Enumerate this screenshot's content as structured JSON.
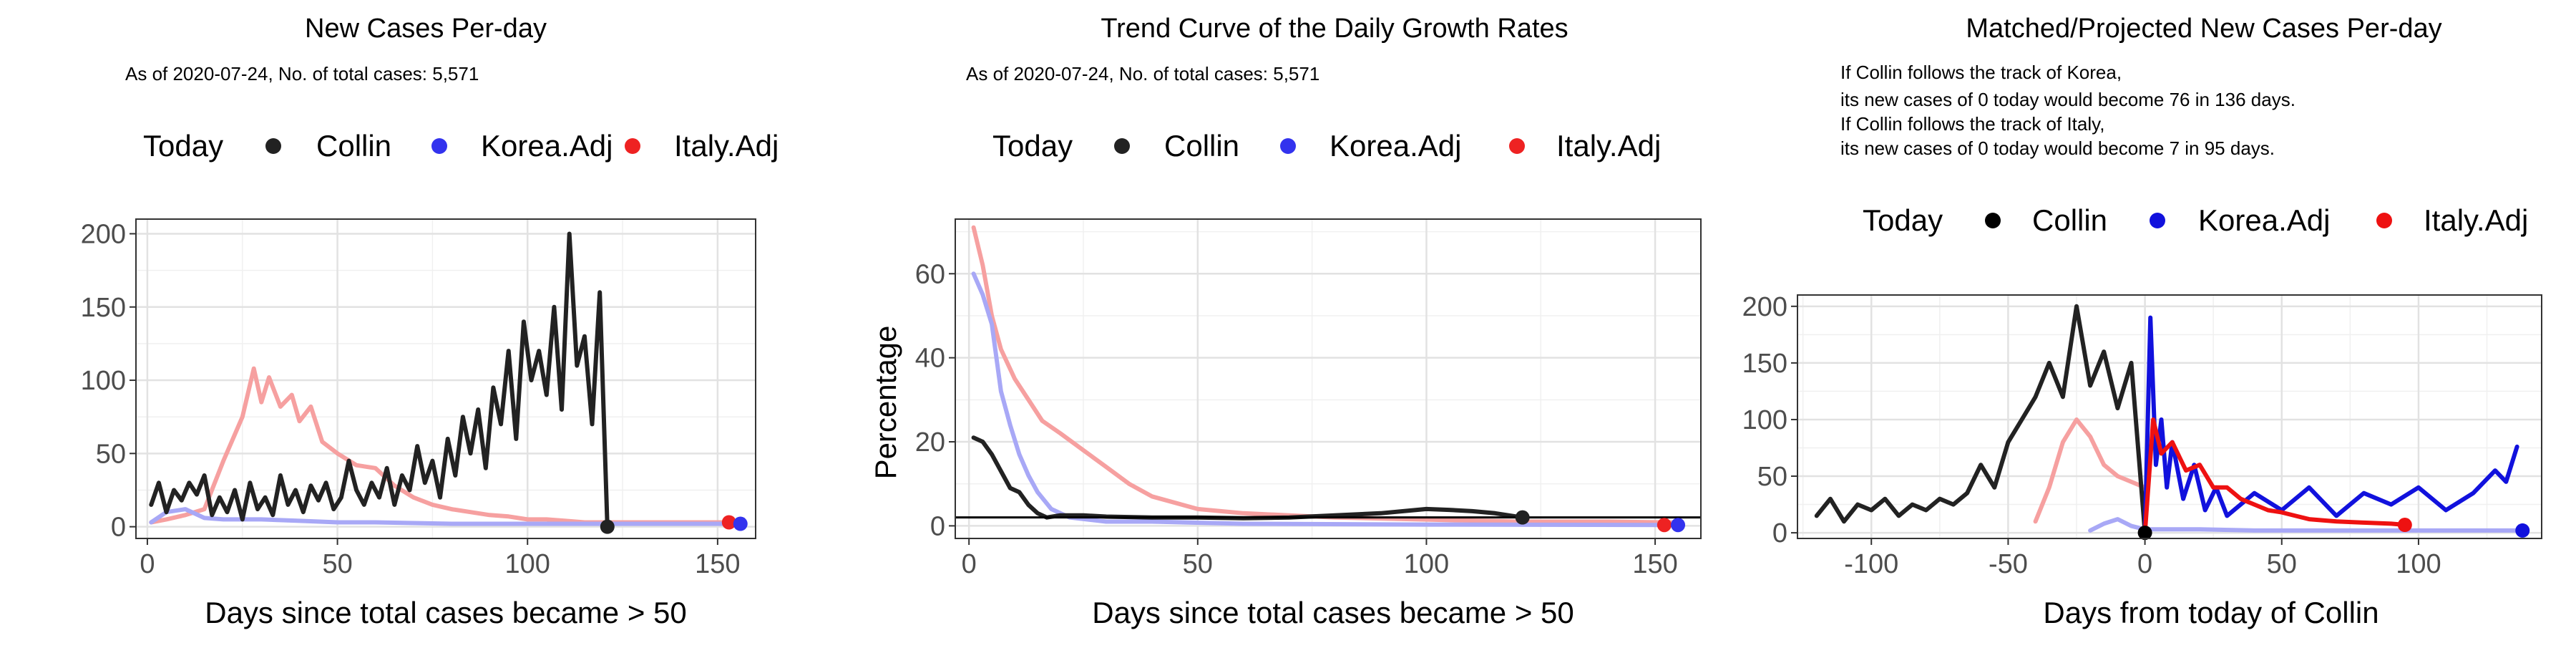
{
  "chart_data": [
    {
      "type": "line",
      "title": "New Cases Per-day",
      "subtitle": "As of 2020-07-24, No. of total cases: 5,571",
      "xlabel": "Days since total cases became > 50",
      "ylabel": "",
      "xlim": [
        -3,
        160
      ],
      "ylim": [
        -8,
        210
      ],
      "xticks": [
        0,
        50,
        100,
        150
      ],
      "yticks": [
        0,
        50,
        100,
        150,
        200
      ],
      "legend": {
        "title": "Today",
        "position": "top",
        "entries": [
          {
            "name": "Collin",
            "color": "#222222"
          },
          {
            "name": "Korea.Adj",
            "color": "#3333ee"
          },
          {
            "name": "Italy.Adj",
            "color": "#ee2222"
          }
        ]
      },
      "series": [
        {
          "name": "Italy.Adj",
          "color": "#f6a0a0",
          "x": [
            1,
            5,
            10,
            15,
            20,
            25,
            28,
            30,
            32,
            35,
            38,
            40,
            43,
            46,
            50,
            55,
            60,
            65,
            70,
            75,
            80,
            85,
            90,
            95,
            100,
            105,
            110,
            115,
            120,
            130,
            140,
            150,
            155
          ],
          "y": [
            3,
            5,
            8,
            12,
            45,
            75,
            108,
            85,
            102,
            82,
            90,
            72,
            82,
            58,
            50,
            42,
            40,
            28,
            20,
            15,
            12,
            10,
            8,
            7,
            5,
            5,
            4,
            3,
            3,
            3,
            3,
            3,
            3
          ]
        },
        {
          "name": "Korea.Adj",
          "color": "#a8a8f6",
          "x": [
            1,
            5,
            10,
            15,
            20,
            30,
            40,
            50,
            60,
            80,
            100,
            120,
            140,
            155
          ],
          "y": [
            3,
            10,
            12,
            6,
            5,
            5,
            4,
            3,
            3,
            2,
            2,
            2,
            2,
            2
          ]
        },
        {
          "name": "Collin",
          "color": "#222222",
          "x": [
            1,
            3,
            5,
            7,
            9,
            11,
            13,
            15,
            17,
            19,
            21,
            23,
            25,
            27,
            29,
            31,
            33,
            35,
            37,
            39,
            41,
            43,
            45,
            47,
            49,
            51,
            53,
            55,
            57,
            59,
            61,
            63,
            65,
            67,
            69,
            71,
            73,
            75,
            77,
            79,
            81,
            83,
            85,
            87,
            89,
            91,
            93,
            95,
            97,
            99,
            101,
            103,
            105,
            107,
            109,
            111,
            113,
            115,
            117,
            119,
            121
          ],
          "y": [
            15,
            30,
            10,
            25,
            18,
            30,
            22,
            35,
            8,
            20,
            10,
            25,
            5,
            30,
            12,
            20,
            8,
            35,
            15,
            25,
            10,
            28,
            18,
            30,
            12,
            20,
            45,
            25,
            15,
            30,
            20,
            40,
            15,
            35,
            25,
            55,
            30,
            45,
            20,
            60,
            35,
            75,
            50,
            80,
            40,
            95,
            70,
            120,
            60,
            140,
            100,
            120,
            90,
            150,
            80,
            200,
            110,
            130,
            70,
            160,
            0
          ]
        }
      ],
      "today_markers": [
        {
          "name": "Collin",
          "x": 121,
          "y": 0,
          "color": "#222222"
        },
        {
          "name": "Italy.Adj",
          "x": 153,
          "y": 3,
          "color": "#ee2222"
        },
        {
          "name": "Korea.Adj",
          "x": 156,
          "y": 2,
          "color": "#3333ee"
        }
      ]
    },
    {
      "type": "line",
      "title": "Trend Curve of the Daily Growth Rates",
      "subtitle": "As of 2020-07-24, No. of total cases: 5,571",
      "xlabel": "Days since total cases became > 50",
      "ylabel": "Percentage",
      "xlim": [
        -3,
        160
      ],
      "ylim": [
        -3,
        73
      ],
      "xticks": [
        0,
        50,
        100,
        150
      ],
      "yticks": [
        0,
        20,
        40,
        60
      ],
      "hline": 2,
      "legend": {
        "title": "Today",
        "position": "top",
        "entries": [
          {
            "name": "Collin",
            "color": "#222222"
          },
          {
            "name": "Korea.Adj",
            "color": "#3333ee"
          },
          {
            "name": "Italy.Adj",
            "color": "#ee2222"
          }
        ]
      },
      "series": [
        {
          "name": "Italy.Adj",
          "color": "#f6a0a0",
          "x": [
            1,
            3,
            5,
            7,
            10,
            13,
            16,
            20,
            25,
            30,
            35,
            40,
            50,
            60,
            80,
            100,
            120,
            140,
            155
          ],
          "y": [
            71,
            62,
            50,
            42,
            35,
            30,
            25,
            22,
            18,
            14,
            10,
            7,
            4,
            3,
            2,
            1.5,
            1,
            1,
            0.8
          ]
        },
        {
          "name": "Korea.Adj",
          "color": "#a8a8f6",
          "x": [
            1,
            3,
            5,
            7,
            9,
            11,
            13,
            15,
            18,
            22,
            30,
            40,
            60,
            100,
            155
          ],
          "y": [
            60,
            55,
            48,
            32,
            24,
            17,
            12,
            8,
            4,
            2,
            1,
            1,
            0.5,
            0.3,
            0.2
          ]
        },
        {
          "name": "Collin",
          "color": "#222222",
          "x": [
            1,
            3,
            5,
            7,
            9,
            11,
            13,
            15,
            17,
            20,
            25,
            30,
            40,
            50,
            60,
            70,
            80,
            90,
            100,
            105,
            110,
            115,
            121
          ],
          "y": [
            21,
            20,
            17,
            13,
            9,
            8,
            5,
            3,
            2,
            2.5,
            2.5,
            2.2,
            2,
            2,
            1.8,
            2,
            2.5,
            3,
            4,
            3.8,
            3.5,
            3,
            2
          ]
        }
      ],
      "today_markers": [
        {
          "name": "Collin",
          "x": 121,
          "y": 2,
          "color": "#222222"
        },
        {
          "name": "Italy.Adj",
          "x": 152,
          "y": 0.2,
          "color": "#ee2222"
        },
        {
          "name": "Korea.Adj",
          "x": 155,
          "y": 0.2,
          "color": "#3333ee"
        }
      ]
    },
    {
      "type": "line",
      "title": "Matched/Projected New Cases Per-day",
      "notes": [
        "If Collin follows the track of Korea,",
        "its new cases of 0 today would become 76 in 136 days.",
        "If Collin follows the track of Italy,",
        "its new cases of 0 today would become 7 in 95 days."
      ],
      "xlabel": "Days from today of Collin",
      "ylabel": "",
      "xlim": [
        -127,
        145
      ],
      "ylim": [
        -5,
        210
      ],
      "xticks": [
        -100,
        -50,
        0,
        50,
        100
      ],
      "yticks": [
        0,
        50,
        100,
        150,
        200
      ],
      "legend": {
        "title": "Today",
        "position": "top",
        "entries": [
          {
            "name": "Collin",
            "color": "#000000"
          },
          {
            "name": "Korea.Adj",
            "color": "#1111dd"
          },
          {
            "name": "Italy.Adj",
            "color": "#ee1111"
          }
        ]
      },
      "series": [
        {
          "name": "Italy.Adj (past)",
          "color": "#f6a0a0",
          "x": [
            -40,
            -35,
            -30,
            -25,
            -20,
            -15,
            -10,
            -5,
            0
          ],
          "y": [
            10,
            40,
            80,
            100,
            85,
            60,
            50,
            45,
            40
          ]
        },
        {
          "name": "Korea.Adj (past)",
          "color": "#a8a8f6",
          "x": [
            -20,
            -15,
            -10,
            -5,
            0,
            20,
            40,
            60,
            80,
            100,
            120,
            136
          ],
          "y": [
            2,
            8,
            12,
            6,
            3,
            3,
            2,
            2,
            2,
            2,
            2,
            2
          ]
        },
        {
          "name": "Collin",
          "color": "#222222",
          "x": [
            -120,
            -115,
            -110,
            -105,
            -100,
            -95,
            -90,
            -85,
            -80,
            -75,
            -70,
            -65,
            -60,
            -55,
            -50,
            -45,
            -40,
            -35,
            -30,
            -25,
            -20,
            -15,
            -10,
            -5,
            0
          ],
          "y": [
            15,
            30,
            10,
            25,
            20,
            30,
            15,
            25,
            20,
            30,
            25,
            35,
            60,
            40,
            80,
            100,
            120,
            150,
            120,
            200,
            130,
            160,
            110,
            150,
            0
          ]
        },
        {
          "name": "Korea.Adj",
          "color": "#1111dd",
          "x": [
            0,
            2,
            4,
            6,
            8,
            10,
            14,
            18,
            22,
            26,
            30,
            40,
            50,
            60,
            70,
            80,
            90,
            100,
            110,
            120,
            128,
            132,
            136
          ],
          "y": [
            0,
            190,
            60,
            100,
            40,
            80,
            30,
            60,
            20,
            40,
            15,
            35,
            20,
            40,
            15,
            35,
            25,
            40,
            20,
            35,
            55,
            45,
            76
          ]
        },
        {
          "name": "Italy.Adj",
          "color": "#ee1111",
          "x": [
            0,
            3,
            6,
            10,
            15,
            20,
            25,
            30,
            35,
            40,
            45,
            50,
            55,
            60,
            70,
            80,
            90,
            95
          ],
          "y": [
            0,
            100,
            70,
            80,
            55,
            60,
            40,
            40,
            30,
            25,
            20,
            18,
            15,
            12,
            10,
            9,
            8,
            7
          ]
        }
      ],
      "today_markers": [
        {
          "name": "Collin",
          "x": 0,
          "y": 0,
          "color": "#000000"
        },
        {
          "name": "Italy.Adj",
          "x": 95,
          "y": 7,
          "color": "#ee1111"
        },
        {
          "name": "Korea.Adj",
          "x": 138,
          "y": 2,
          "color": "#1111dd"
        }
      ]
    }
  ]
}
